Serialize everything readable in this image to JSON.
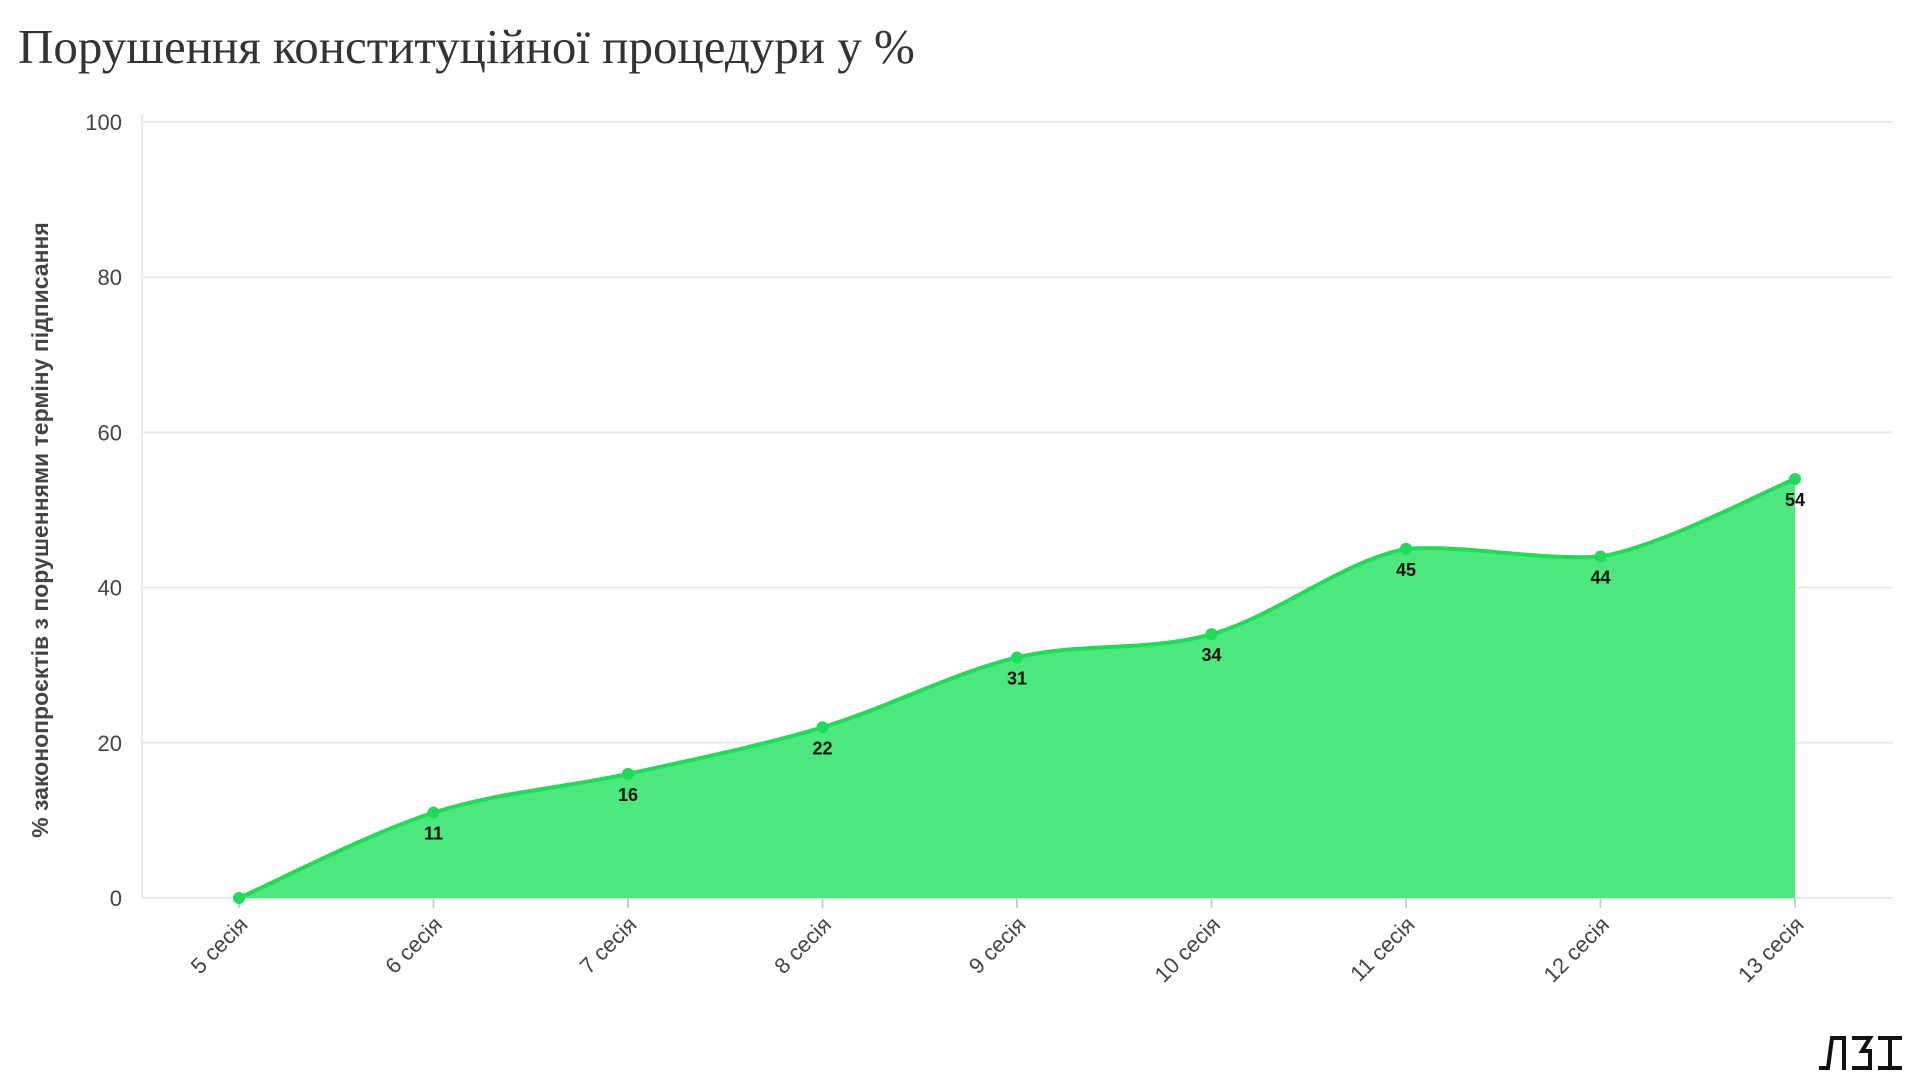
{
  "title": "Порушення конституційної процедури у %",
  "logo_text": "ЛЗІ",
  "colors": {
    "line": "#1ddc55",
    "area": "#4ce77d",
    "grid": "#e9e9e9",
    "text": "#444444"
  },
  "chart_data": {
    "type": "area",
    "title": "Порушення конституційної процедури у %",
    "xlabel": "",
    "ylabel": "% законопроєктів з порушеннями терміну підписання",
    "categories": [
      "5 сесія",
      "6 сесія",
      "7 сесія",
      "8 сесія",
      "9 сесія",
      "10 сесія",
      "11 сесія",
      "12 сесія",
      "13 сесія"
    ],
    "values": [
      0,
      11,
      16,
      22,
      31,
      34,
      45,
      44,
      54
    ],
    "data_labels": [
      "",
      "11",
      "16",
      "22",
      "31",
      "34",
      "45",
      "44",
      "54"
    ],
    "ylim": [
      0,
      100
    ],
    "yticks": [
      0,
      20,
      40,
      60,
      80,
      100
    ],
    "grid": true,
    "legend": "none"
  }
}
